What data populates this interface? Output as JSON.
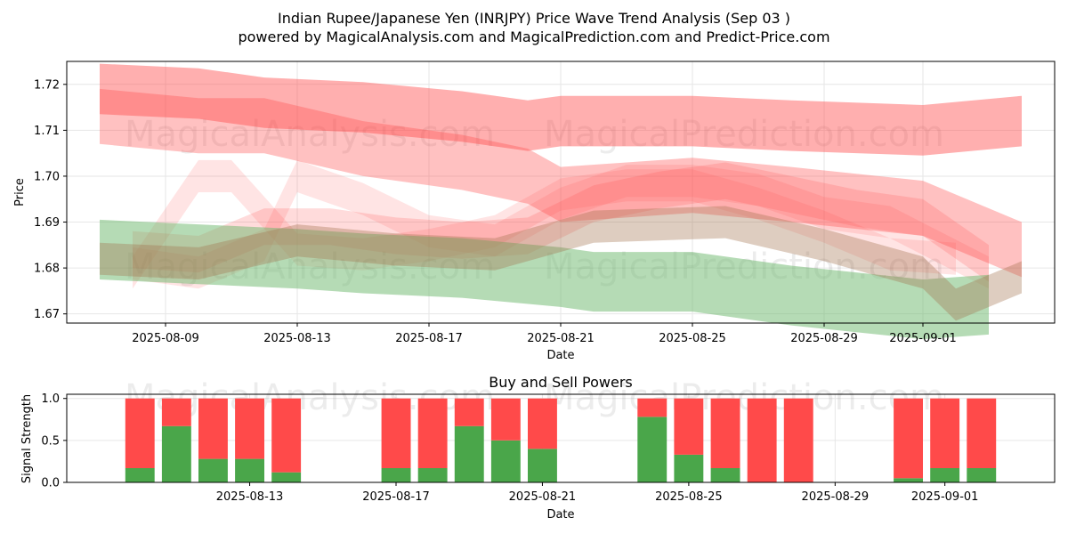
{
  "title": "Indian Rupee/Japanese Yen (INRJPY) Price Wave Trend Analysis (Sep 03 )",
  "subtitle": "powered by MagicalAnalysis.com and MagicalPrediction.com and Predict-Price.com",
  "watermarks": [
    "MagicalAnalysis.com",
    "MagicalPrediction.com"
  ],
  "colors": {
    "buy": "#4aa64a",
    "sell": "#ff4a4a",
    "band_red": "#ff4d4d",
    "band_green": "#6cb86c",
    "band_brown": "#a0704a"
  },
  "chart_data": [
    {
      "type": "area",
      "title": "",
      "xlabel": "Date",
      "ylabel": "Price",
      "x_ticks": [
        "2025-08-09",
        "2025-08-13",
        "2025-08-17",
        "2025-08-21",
        "2025-08-25",
        "2025-08-29",
        "2025-09-01"
      ],
      "y_ticks": [
        "1.67",
        "1.68",
        "1.69",
        "1.70",
        "1.71",
        "1.72"
      ],
      "ylim": [
        1.668,
        1.725
      ],
      "xlim": [
        "2025-08-06",
        "2025-09-05"
      ],
      "grid": true,
      "series": [
        {
          "color": "red",
          "opacity": 0.45,
          "x": [
            "2025-08-07",
            "2025-08-10",
            "2025-08-12",
            "2025-08-15",
            "2025-08-18",
            "2025-08-20",
            "2025-08-21",
            "2025-08-23",
            "2025-08-25",
            "2025-08-28",
            "2025-09-01",
            "2025-09-04"
          ],
          "y": [
            1.719,
            1.718,
            1.716,
            1.715,
            1.713,
            1.711,
            1.712,
            1.712,
            1.712,
            1.711,
            1.71,
            1.712
          ],
          "width": 0.011
        },
        {
          "color": "red",
          "opacity": 0.35,
          "x": [
            "2025-08-07",
            "2025-08-10",
            "2025-08-12",
            "2025-08-15",
            "2025-08-18",
            "2025-08-20",
            "2025-08-21",
            "2025-08-23",
            "2025-08-25",
            "2025-08-28",
            "2025-09-01",
            "2025-09-04"
          ],
          "y": [
            1.713,
            1.711,
            1.711,
            1.706,
            1.703,
            1.7,
            1.696,
            1.697,
            1.698,
            1.696,
            1.693,
            1.684
          ],
          "width": 0.012
        },
        {
          "color": "red",
          "opacity": 0.2,
          "x": [
            "2025-08-08",
            "2025-08-10",
            "2025-08-12",
            "2025-08-14",
            "2025-08-16",
            "2025-08-18",
            "2025-08-20",
            "2025-08-22",
            "2025-08-24",
            "2025-08-26",
            "2025-08-28",
            "2025-08-30",
            "2025-09-01",
            "2025-09-03"
          ],
          "y": [
            1.684,
            1.683,
            1.689,
            1.689,
            1.687,
            1.686,
            1.687,
            1.694,
            1.697,
            1.699,
            1.696,
            1.693,
            1.691,
            1.681
          ],
          "width": 0.008
        },
        {
          "color": "red",
          "opacity": 0.15,
          "x": [
            "2025-08-08",
            "2025-08-10",
            "2025-08-11",
            "2025-08-13",
            "2025-08-15",
            "2025-08-17",
            "2025-08-19",
            "2025-08-21",
            "2025-08-23",
            "2025-08-25",
            "2025-08-27",
            "2025-08-29",
            "2025-08-31",
            "2025-09-02"
          ],
          "y": [
            1.679,
            1.7,
            1.7,
            1.684,
            1.683,
            1.685,
            1.688,
            1.696,
            1.698,
            1.698,
            1.694,
            1.689,
            1.683,
            1.682
          ],
          "width": 0.007
        },
        {
          "color": "red",
          "opacity": 0.15,
          "x": [
            "2025-08-08",
            "2025-08-10",
            "2025-08-12",
            "2025-08-13",
            "2025-08-15",
            "2025-08-17",
            "2025-08-19",
            "2025-08-21",
            "2025-08-23",
            "2025-08-25",
            "2025-08-27",
            "2025-08-29",
            "2025-08-31",
            "2025-09-03"
          ],
          "y": [
            1.681,
            1.679,
            1.685,
            1.7,
            1.695,
            1.688,
            1.686,
            1.694,
            1.699,
            1.699,
            1.697,
            1.692,
            1.69,
            1.679
          ],
          "width": 0.007
        },
        {
          "color": "green",
          "opacity": 0.5,
          "x": [
            "2025-08-07",
            "2025-08-10",
            "2025-08-13",
            "2025-08-15",
            "2025-08-18",
            "2025-08-21",
            "2025-08-22",
            "2025-08-25",
            "2025-08-28",
            "2025-09-01",
            "2025-09-03"
          ],
          "y": [
            1.684,
            1.683,
            1.682,
            1.681,
            1.68,
            1.678,
            1.677,
            1.677,
            1.674,
            1.671,
            1.672
          ],
          "width": 0.013
        },
        {
          "color": "brown",
          "opacity": 0.35,
          "x": [
            "2025-08-07",
            "2025-08-10",
            "2025-08-13",
            "2025-08-16",
            "2025-08-19",
            "2025-08-22",
            "2025-08-26",
            "2025-08-29",
            "2025-09-01",
            "2025-09-02",
            "2025-09-04"
          ],
          "y": [
            1.682,
            1.681,
            1.686,
            1.684,
            1.683,
            1.689,
            1.69,
            1.685,
            1.679,
            1.672,
            1.678
          ],
          "width": 0.007
        }
      ]
    },
    {
      "type": "bar",
      "title": "Buy and Sell Powers",
      "xlabel": "Date",
      "ylabel": "Signal Strength",
      "ylim": [
        0,
        1.05
      ],
      "y_ticks": [
        "0.0",
        "0.5",
        "1.0"
      ],
      "x_ticks": [
        "2025-08-13",
        "2025-08-17",
        "2025-08-21",
        "2025-08-25",
        "2025-08-29",
        "2025-09-01"
      ],
      "xlim": [
        "2025-08-08",
        "2025-09-04"
      ],
      "grid": true,
      "categories": [
        "2025-08-10",
        "2025-08-11",
        "2025-08-12",
        "2025-08-13",
        "2025-08-14",
        "2025-08-17",
        "2025-08-18",
        "2025-08-19",
        "2025-08-20",
        "2025-08-21",
        "2025-08-24",
        "2025-08-25",
        "2025-08-26",
        "2025-08-27",
        "2025-08-28",
        "2025-08-31",
        "2025-09-01",
        "2025-09-02"
      ],
      "series": [
        {
          "name": "Buy",
          "values": [
            0.17,
            0.67,
            0.28,
            0.28,
            0.12,
            0.17,
            0.17,
            0.67,
            0.5,
            0.4,
            0.78,
            0.33,
            0.17,
            0.0,
            0.0,
            0.05,
            0.17,
            0.17
          ]
        },
        {
          "name": "Sell",
          "values": [
            0.83,
            0.33,
            0.72,
            0.72,
            0.88,
            0.83,
            0.83,
            0.33,
            0.5,
            0.6,
            0.22,
            0.67,
            0.83,
            1.0,
            1.0,
            0.95,
            0.83,
            0.83
          ]
        }
      ]
    }
  ]
}
